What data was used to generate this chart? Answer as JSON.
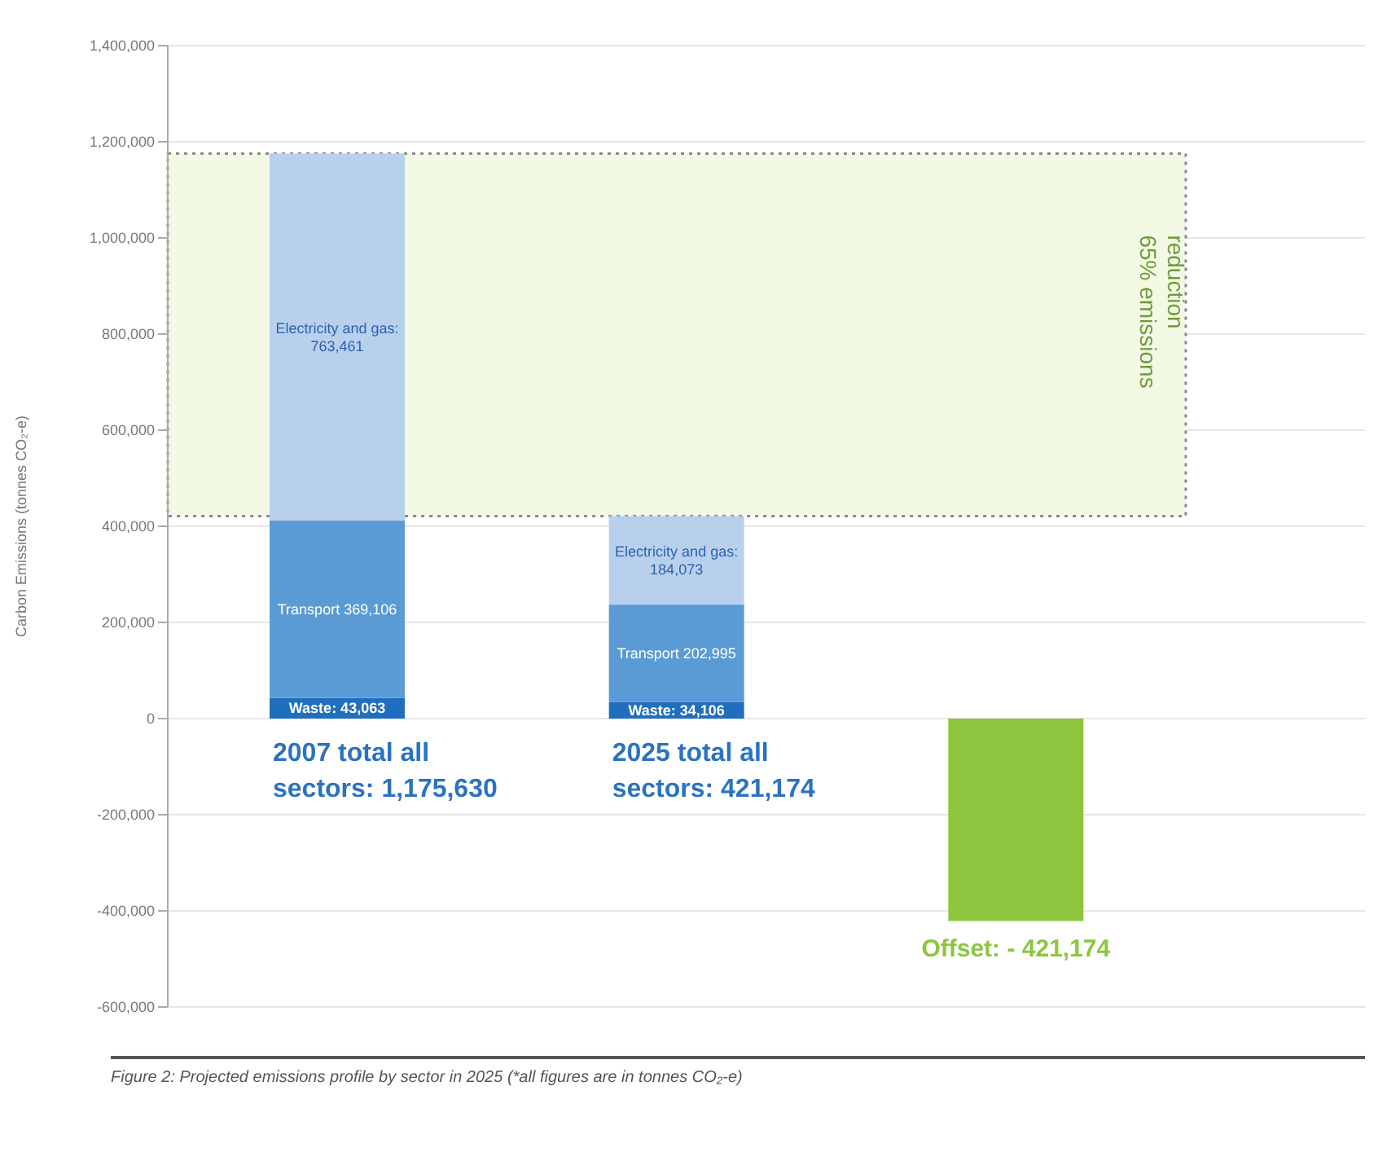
{
  "chart_data": {
    "type": "bar",
    "stacked": true,
    "ylabel": "Carbon Emissions (tonnes CO₂-e)",
    "annotations": [
      "Figure 2: Projected emissions profile by sector in 2025 (*all figures are in tonnes CO₂-e)"
    ],
    "categories": [
      null,
      null,
      null
    ],
    "series": [
      {
        "color": "#1f6fbe",
        "values": [
          43063,
          34106,
          null
        ],
        "value_labels": [
          "Waste: 43,063",
          "Waste: 34,106",
          null
        ]
      },
      {
        "color": "#5b9bd5",
        "values": [
          369106,
          202995,
          null
        ],
        "value_labels": [
          "Transport 369,106",
          "Transport 202,995",
          null
        ]
      },
      {
        "color": "#b9d0ec",
        "values": [
          763461,
          184073,
          null
        ],
        "value_labels": [
          "Electricity and gas: 763,461",
          "Electricity and gas: 184,073",
          null
        ]
      },
      {
        "color": "#8cc63f",
        "values": [
          null,
          null,
          -421174
        ],
        "value_labels": [
          null,
          null,
          "Offset: - 421,174"
        ]
      }
    ],
    "totals": [
      "2007 total all sectors: 1,175,630",
      "2025 total all sectors: 421,174",
      null
    ],
    "bands": [
      {
        "axis": "y",
        "from": 421174,
        "to": 1175630,
        "label": "65% emissions reduction",
        "color": "#f2f9e4"
      }
    ],
    "ylim": [
      -600000,
      1400000
    ],
    "yticks": [
      {
        "value": -600000,
        "label": "-600,000"
      },
      {
        "value": -400000,
        "label": "-400,000"
      },
      {
        "value": -200000,
        "label": "-200,000"
      },
      0,
      {
        "value": 200000,
        "label": "200,000"
      },
      {
        "value": 400000,
        "label": "400,000"
      },
      {
        "value": 600000,
        "label": "600,000"
      },
      {
        "value": 800000,
        "label": "800,000"
      },
      {
        "value": 1000000,
        "label": "1,000,000"
      },
      {
        "value": 1200000,
        "label": "1,200,000"
      },
      {
        "value": 1400000,
        "label": "1,400,000"
      }
    ],
    "grid": "y"
  }
}
